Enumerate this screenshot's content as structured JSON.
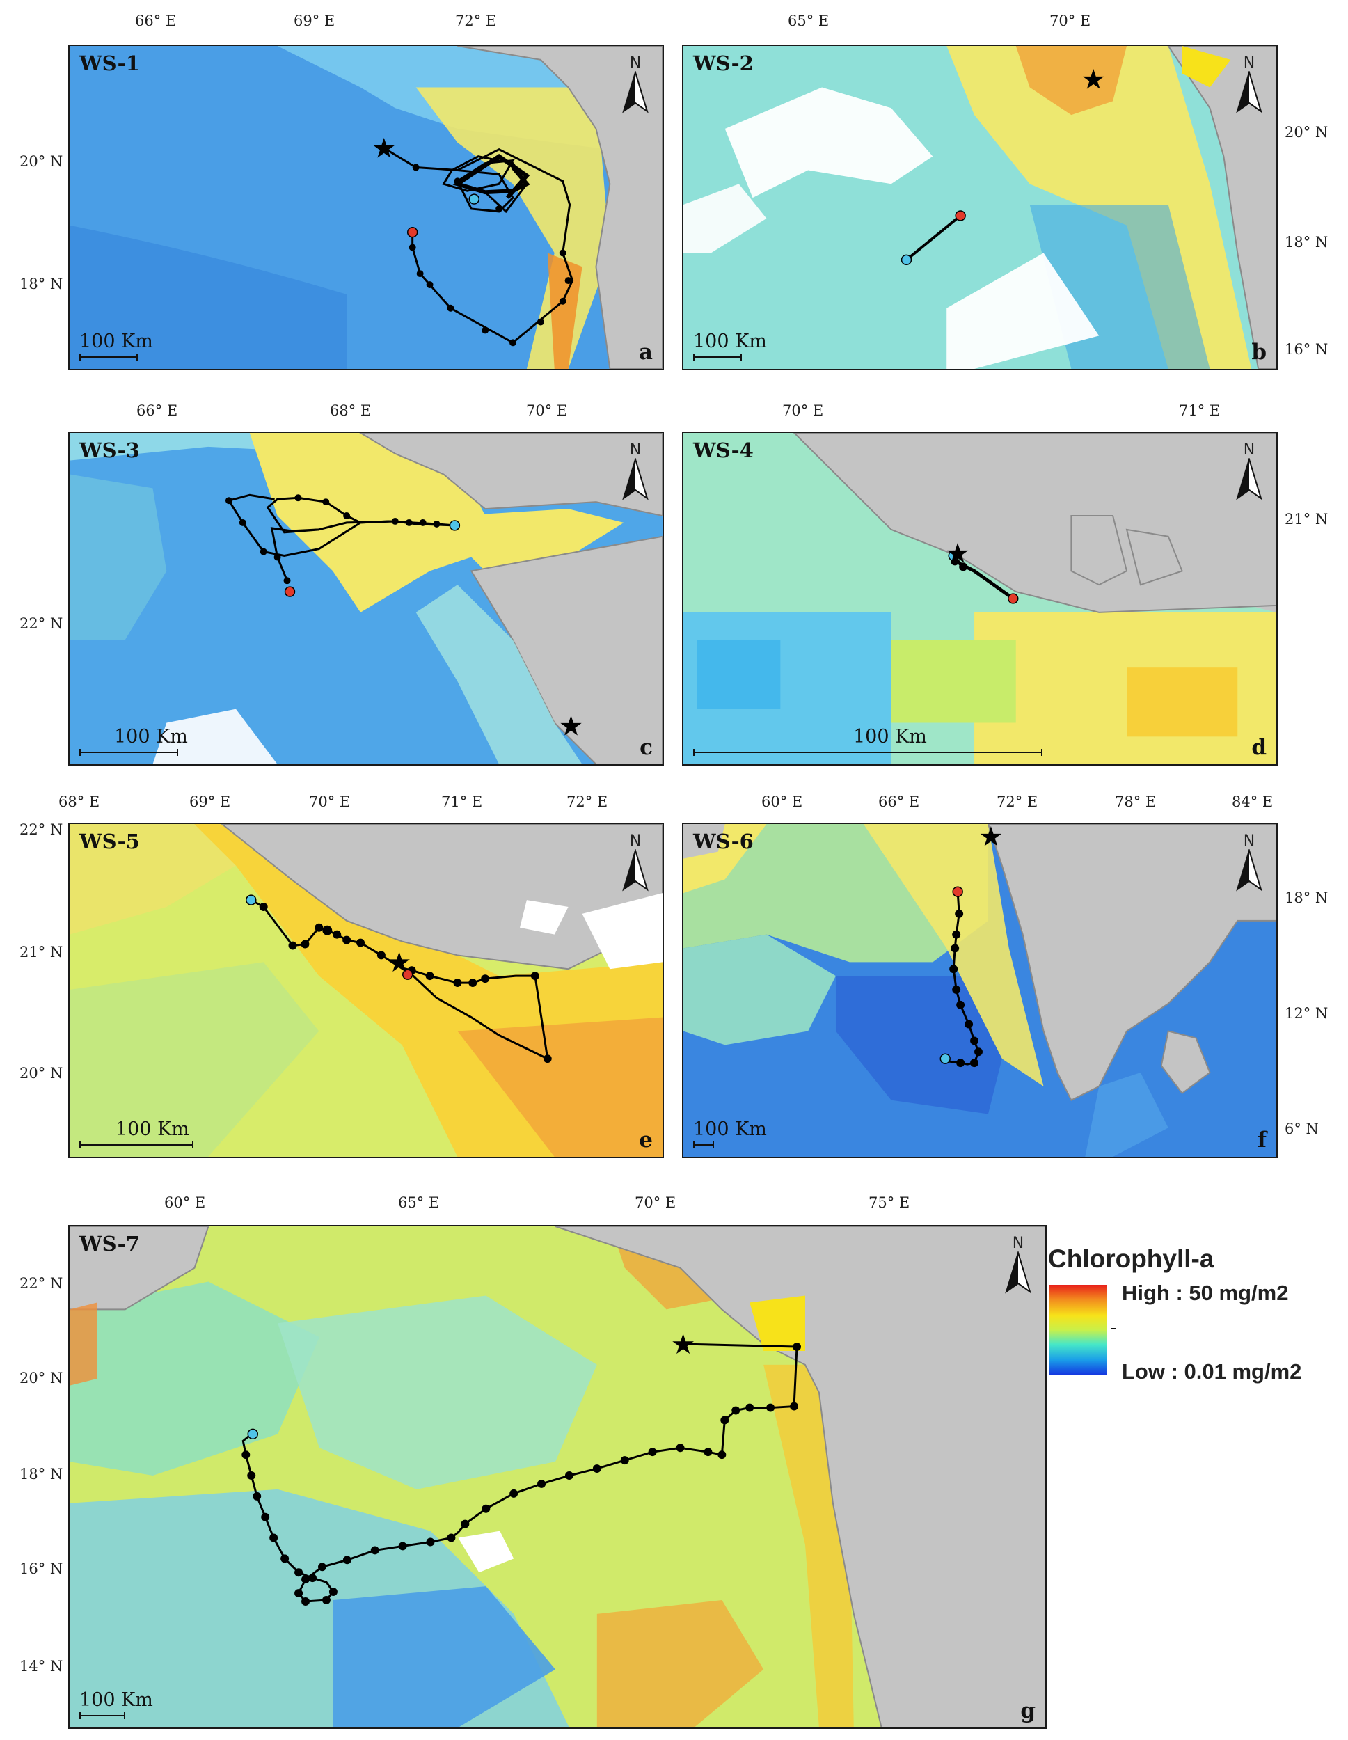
{
  "figure": {
    "panels": [
      {
        "id": "WS-1",
        "letter": "a",
        "scale_label": "100 Km",
        "x_ticks": [
          "66° E",
          "69° E",
          "72° E"
        ],
        "y_ticks": [
          "20° N",
          "18° N"
        ],
        "bg": "#4a9ee6",
        "accent": "#7fd0f0",
        "land": "#c4c4c4"
      },
      {
        "id": "WS-2",
        "letter": "b",
        "scale_label": "100 Km",
        "x_ticks": [
          "65° E",
          "70° E"
        ],
        "y_ticks": [
          "20° N",
          "18° N",
          "16° N"
        ],
        "bg": "#8fe0d8",
        "accent": "#f2e86a",
        "land": "#c4c4c4"
      },
      {
        "id": "WS-3",
        "letter": "c",
        "scale_label": "100 Km",
        "x_ticks": [
          "66° E",
          "68° E",
          "70° E"
        ],
        "y_ticks": [
          "22° N"
        ],
        "bg": "#4fa6e8",
        "accent": "#f2e86a",
        "land": "#c4c4c4"
      },
      {
        "id": "WS-4",
        "letter": "d",
        "scale_label": "100 Km",
        "x_ticks": [
          "70° E",
          "71° E"
        ],
        "y_ticks": [
          "21° N"
        ],
        "bg": "#9fe6c8",
        "accent": "#f7d83a",
        "land": "#c4c4c4"
      },
      {
        "id": "WS-5",
        "letter": "e",
        "scale_label": "100 Km",
        "x_ticks": [
          "68° E",
          "69° E",
          "70° E",
          "71° E",
          "72° E"
        ],
        "y_ticks": [
          "22° N",
          "21° N",
          "20° N"
        ],
        "bg": "#d8ec6a",
        "accent": "#f7c23a",
        "land": "#c4c4c4"
      },
      {
        "id": "WS-6",
        "letter": "f",
        "scale_label": "100 Km",
        "x_ticks": [
          "60° E",
          "66° E",
          "72° E",
          "78° E",
          "84° E"
        ],
        "y_ticks": [
          "18° N",
          "12° N",
          "6° N"
        ],
        "bg": "#3a86e0",
        "accent": "#a8e0a0",
        "land": "#c4c4c4"
      },
      {
        "id": "WS-7",
        "letter": "g",
        "scale_label": "100 Km",
        "x_ticks": [
          "60° E",
          "65° E",
          "70° E",
          "75° E"
        ],
        "y_ticks": [
          "22° N",
          "20° N",
          "18° N",
          "16° N",
          "14° N"
        ],
        "bg": "#d0ea6a",
        "accent": "#6ec6e8",
        "land": "#c4c4c4"
      }
    ],
    "legend": {
      "title": "Chlorophyll-a",
      "high": "High : 50 mg/m2",
      "low": "Low : 0.01 mg/m2",
      "colors": [
        "#e8201a",
        "#f7e21a",
        "#46e7c8",
        "#1433e0"
      ]
    },
    "markers": {
      "start_color": "#4fc3e8",
      "end_color": "#e23a2a",
      "track_color": "#000000",
      "release_symbol": "★"
    },
    "north_label": "N"
  }
}
